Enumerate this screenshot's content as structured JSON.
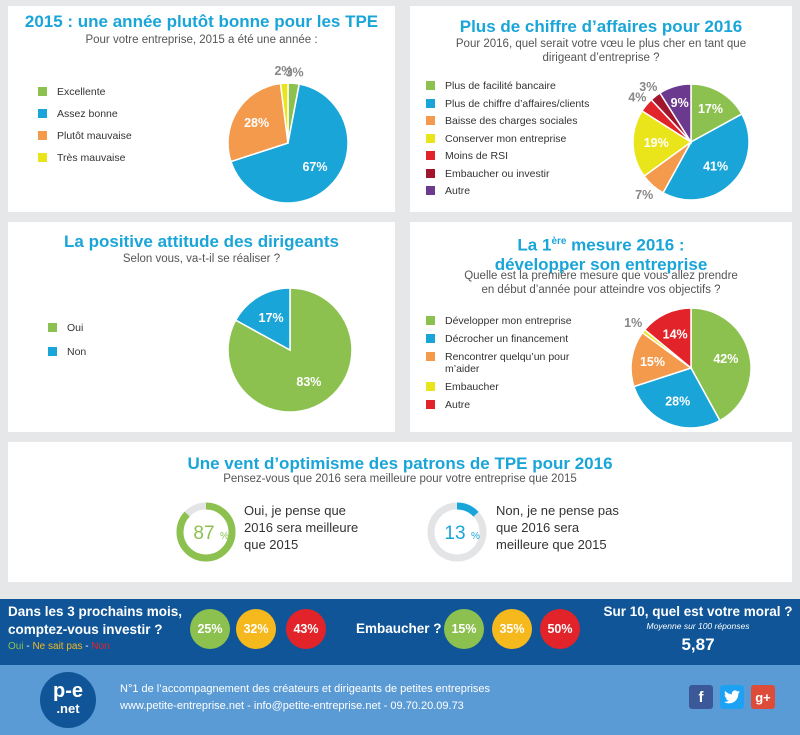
{
  "colors": {
    "green": "#8dc14f",
    "blue": "#1aa5d8",
    "orange": "#f39a4c",
    "yellow": "#eae51a",
    "red": "#e2242a",
    "darkred": "#a3152d",
    "purple": "#6b3a8f",
    "title": "#1aa5d8",
    "bar_bg": "#0f5597",
    "footer_bg": "#5b9bd5"
  },
  "charts": [
    {
      "title": "2015 : une année plutôt bonne pour les TPE",
      "subtitle": "Pour votre entreprise, 2015 a été une année :",
      "legend": [
        "Excellente",
        "Assez bonne",
        "Plutôt mauvaise",
        "Très mauvaise"
      ]
    },
    {
      "title": "Plus de chiffre d’affaires pour 2016",
      "subtitle": "Pour 2016, quel serait votre vœu le plus cher en tant que dirigeant d’entreprise ?",
      "legend": [
        "Plus de facilité bancaire",
        "Plus de chiffre d’affaires/clients",
        "Baisse des charges sociales",
        "Conserver mon entreprise",
        "Moins de RSI",
        "Embaucher ou investir",
        "Autre"
      ]
    },
    {
      "title": "La positive attitude des dirigeants",
      "subtitle": "Selon vous, va-t-il se réaliser ?",
      "legend": [
        "Oui",
        "Non"
      ]
    },
    {
      "title_pre": "La 1",
      "title_sup": "ère",
      "title_post": " mesure 2016 : développer son entreprise",
      "subtitle": "Quelle est la première mesure que vous allez prendre en début d’année pour atteindre vos objectifs ?",
      "legend": [
        "Développer mon entreprise",
        "Décrocher un financement",
        "Rencontrer quelqu’un pour m’aider",
        "Embaucher",
        "Autre"
      ]
    }
  ],
  "chart_data": [
    {
      "type": "pie",
      "title": "2015 : une année plutôt bonne pour les TPE",
      "categories": [
        "Excellente",
        "Assez bonne",
        "Plutôt mauvaise",
        "Très mauvaise"
      ],
      "values": [
        3,
        67,
        28,
        2
      ],
      "labels": [
        "3%",
        "67%",
        "28%",
        "2%"
      ],
      "colors": [
        "#8dc14f",
        "#1aa5d8",
        "#f39a4c",
        "#eae51a"
      ]
    },
    {
      "type": "pie",
      "title": "Plus de chiffre d’affaires pour 2016",
      "categories": [
        "Plus de facilité bancaire",
        "Plus de chiffre d’affaires/clients",
        "Baisse des charges sociales",
        "Conserver mon entreprise",
        "Moins de RSI",
        "Embaucher ou investir",
        "Autre"
      ],
      "values": [
        17,
        41,
        7,
        19,
        4,
        3,
        9
      ],
      "labels": [
        "17%",
        "41%",
        "7%",
        "19%",
        "4%",
        "3%",
        "9%"
      ],
      "colors": [
        "#8dc14f",
        "#1aa5d8",
        "#f39a4c",
        "#eae51a",
        "#e2242a",
        "#a3152d",
        "#6b3a8f"
      ]
    },
    {
      "type": "pie",
      "title": "La positive attitude des dirigeants",
      "categories": [
        "Oui",
        "Non"
      ],
      "values": [
        83,
        17
      ],
      "labels": [
        "83%",
        "17%"
      ],
      "colors": [
        "#8dc14f",
        "#1aa5d8"
      ]
    },
    {
      "type": "pie",
      "title": "La 1ère mesure 2016 : développer son entreprise",
      "categories": [
        "Développer mon entreprise",
        "Décrocher un financement",
        "Rencontrer quelqu’un pour m’aider",
        "Embaucher",
        "Autre"
      ],
      "values": [
        42,
        28,
        15,
        1,
        14
      ],
      "labels": [
        "42%",
        "28%",
        "15%",
        "1%",
        "14%"
      ],
      "colors": [
        "#8dc14f",
        "#1aa5d8",
        "#f39a4c",
        "#eae51a",
        "#e2242a"
      ]
    },
    {
      "type": "gauge",
      "title": "Une vent d’optimisme des patrons de TPE pour 2016",
      "categories": [
        "Oui",
        "Non"
      ],
      "values": [
        87,
        13
      ]
    },
    {
      "type": "bar",
      "title": "Dans les 3 prochains mois, comptez-vous investir ?",
      "categories": [
        "Oui",
        "Ne sait pas",
        "Non"
      ],
      "values": [
        25,
        32,
        43
      ]
    },
    {
      "type": "bar",
      "title": "Embaucher ?",
      "categories": [
        "Oui",
        "Ne sait pas",
        "Non"
      ],
      "values": [
        15,
        35,
        50
      ]
    }
  ],
  "optimism": {
    "title": "Une vent d’optimisme des patrons de TPE pour 2016",
    "subtitle": "Pensez-vous que 2016 sera meilleure pour votre entreprise que 2015",
    "yes_pct": "87",
    "yes_text": "Oui, je pense que 2016 sera meilleure que 2015",
    "no_pct": "13",
    "no_text": "Non, je ne pense pas que 2016 sera meilleure que 2015"
  },
  "invest": {
    "question": "Dans les 3 prochains mois, comptez-vous investir ?",
    "legend_oui": "Oui",
    "legend_sep1": " - ",
    "legend_nsp": "Ne sait pas",
    "legend_sep2": " - ",
    "legend_non": "Non",
    "values": [
      "25%",
      "32%",
      "43%"
    ]
  },
  "hire": {
    "question": "Embaucher ?",
    "values": [
      "15%",
      "35%",
      "50%"
    ]
  },
  "moral": {
    "question": "Sur 10, quel est votre moral ?",
    "note": "Moyenne sur 100 réponses",
    "value": "5,87"
  },
  "footer": {
    "logo_top": "p-e",
    "logo_bottom": ".net",
    "tagline_prefix": "N°1 de l’accompagnement des créateurs et dirigeants de petites entreprises",
    "contact": "www.petite-entreprise.net - info@petite-entreprise.net - 09.70.20.09.73",
    "social_f": "f",
    "social_g": "g+"
  }
}
